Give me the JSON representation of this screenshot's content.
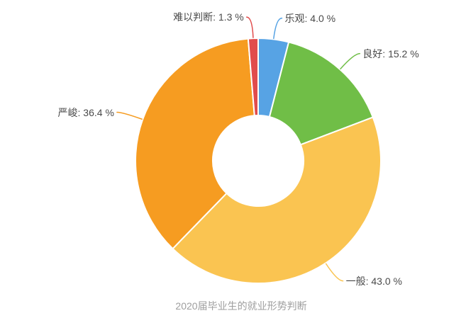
{
  "chart_data": {
    "type": "pie",
    "subtype": "donut",
    "title": "2020届毕业生的就业形势判断",
    "legend_position": "none",
    "label_format": "name: value %",
    "label_color": "#4a4a4a",
    "title_color": "#9e9e9e",
    "border_color": "#ffffff",
    "start_angle": "top",
    "direction": "clockwise",
    "series": [
      {
        "name": "乐观",
        "value": 4.0,
        "label": "乐观: 4.0 %",
        "color": "#57a3e4"
      },
      {
        "name": "良好",
        "value": 15.2,
        "label": "良好: 15.2 %",
        "color": "#70be47"
      },
      {
        "name": "一般",
        "value": 43.0,
        "label": "一般: 43.0 %",
        "color": "#fac451"
      },
      {
        "name": "严峻",
        "value": 36.4,
        "label": "严峻: 36.4 %",
        "color": "#f69c21"
      },
      {
        "name": "难以判断",
        "value": 1.3,
        "label": "难以判断: 1.3 %",
        "color": "#e14c4c"
      }
    ]
  }
}
